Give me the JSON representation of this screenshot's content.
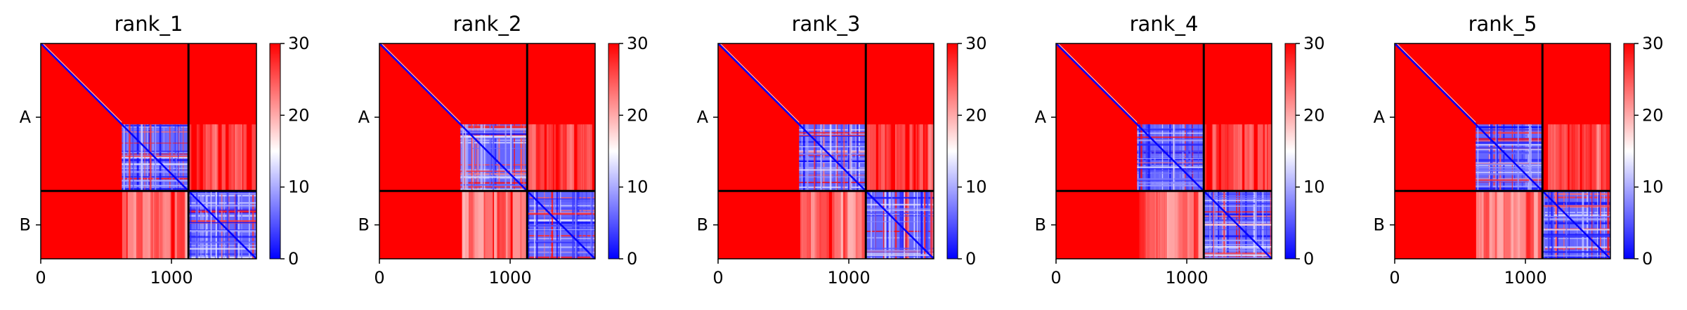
{
  "chart_data": {
    "type": "heatmap",
    "colormap": {
      "name": "bwr",
      "low": "#0000ff",
      "mid": "#ffffff",
      "high": "#ff0000",
      "vmin": 0,
      "vmax": 30
    },
    "colorbar_ticks": [
      0,
      10,
      20,
      30
    ],
    "colorbar_tick_labels": [
      "0",
      "10",
      "20",
      "30"
    ],
    "x_ticks": [
      0,
      1000
    ],
    "x_tick_labels": [
      "0",
      "1000"
    ],
    "x_range": [
      0,
      1650
    ],
    "y_range": [
      0,
      1650
    ],
    "chain_boundary": 1130,
    "chain_labels": [
      "A",
      "B"
    ],
    "grid": false,
    "panels": [
      {
        "title": "rank_1",
        "block_A_low_start": 620,
        "block_B_low_start": 1130
      },
      {
        "title": "rank_2",
        "block_A_low_start": 620,
        "block_B_low_start": 1130
      },
      {
        "title": "rank_3",
        "block_A_low_start": 620,
        "block_B_low_start": 1130
      },
      {
        "title": "rank_4",
        "block_A_low_start": 620,
        "block_B_low_start": 1130
      },
      {
        "title": "rank_5",
        "block_A_low_start": 620,
        "block_B_low_start": 1130
      }
    ]
  }
}
